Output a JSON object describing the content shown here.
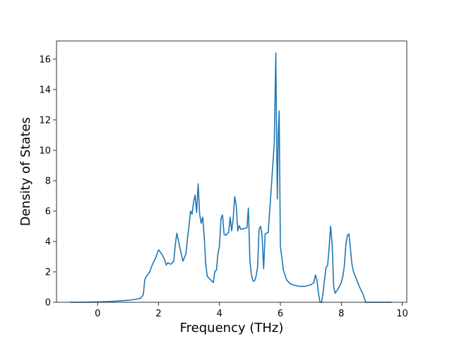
{
  "chart_data": {
    "type": "line",
    "title": "",
    "xlabel": "Frequency (THz)",
    "ylabel": "Density of States",
    "xlim": [
      -1.35,
      10.15
    ],
    "ylim": [
      0,
      17.2
    ],
    "xticks": [
      0,
      2,
      4,
      6,
      8,
      10
    ],
    "yticks": [
      0,
      2,
      4,
      6,
      8,
      10,
      12,
      14,
      16
    ],
    "grid": false,
    "legend": "none",
    "line_color": "#1f77b4",
    "series": [
      {
        "x": [
          -0.9,
          -0.4,
          0.0,
          0.4,
          0.8,
          1.0,
          1.2,
          1.4,
          1.5,
          1.55,
          1.6,
          1.7,
          1.8,
          1.9,
          2.0,
          2.1,
          2.2,
          2.25,
          2.3,
          2.4,
          2.5,
          2.55,
          2.6,
          2.7,
          2.8,
          2.9,
          2.95,
          3.0,
          3.05,
          3.1,
          3.15,
          3.2,
          3.25,
          3.3,
          3.35,
          3.4,
          3.45,
          3.5,
          3.55,
          3.6,
          3.7,
          3.8,
          3.85,
          3.9,
          3.95,
          4.0,
          4.05,
          4.1,
          4.15,
          4.2,
          4.3,
          4.35,
          4.4,
          4.45,
          4.5,
          4.55,
          4.6,
          4.65,
          4.7,
          4.8,
          4.9,
          4.95,
          5.0,
          5.05,
          5.1,
          5.15,
          5.2,
          5.25,
          5.3,
          5.35,
          5.4,
          5.45,
          5.5,
          5.55,
          5.6,
          5.7,
          5.75,
          5.8,
          5.85,
          5.88,
          5.9,
          5.93,
          5.96,
          6.0,
          6.05,
          6.1,
          6.2,
          6.3,
          6.4,
          6.5,
          6.6,
          6.8,
          7.0,
          7.1,
          7.15,
          7.2,
          7.25,
          7.3,
          7.35,
          7.4,
          7.45,
          7.5,
          7.55,
          7.6,
          7.65,
          7.7,
          7.75,
          7.8,
          7.9,
          8.0,
          8.05,
          8.1,
          8.15,
          8.2,
          8.25,
          8.3,
          8.35,
          8.4,
          8.5,
          8.6,
          8.7,
          8.75,
          8.8,
          8.9,
          9.0,
          9.5,
          9.65
        ],
        "y": [
          0,
          0,
          0.02,
          0.05,
          0.1,
          0.13,
          0.18,
          0.25,
          0.5,
          1.5,
          1.7,
          1.95,
          2.5,
          2.9,
          3.45,
          3.2,
          2.8,
          2.45,
          2.6,
          2.5,
          2.7,
          3.8,
          4.55,
          3.6,
          2.7,
          3.2,
          4.2,
          5.0,
          6.0,
          5.8,
          6.6,
          7.05,
          5.9,
          7.8,
          5.8,
          5.2,
          5.6,
          4.3,
          2.5,
          1.7,
          1.5,
          1.3,
          2.05,
          2.1,
          3.2,
          3.7,
          5.5,
          5.75,
          4.5,
          4.4,
          4.6,
          5.6,
          4.7,
          5.5,
          6.95,
          6.4,
          4.7,
          5.05,
          4.8,
          4.85,
          4.9,
          6.2,
          2.7,
          1.8,
          1.4,
          1.4,
          1.7,
          2.3,
          4.8,
          5.0,
          4.4,
          2.2,
          4.5,
          4.55,
          4.6,
          7.5,
          9.0,
          10.5,
          16.4,
          10.0,
          6.8,
          11.0,
          12.6,
          3.7,
          2.9,
          2.1,
          1.5,
          1.25,
          1.15,
          1.1,
          1.05,
          1.05,
          1.15,
          1.3,
          1.8,
          1.45,
          0.6,
          0,
          0,
          0.6,
          1.5,
          2.3,
          2.4,
          3.6,
          5.0,
          3.8,
          1.0,
          0.6,
          0.9,
          1.3,
          1.7,
          2.4,
          3.8,
          4.4,
          4.5,
          3.5,
          2.5,
          2.0,
          1.5,
          1.0,
          0.6,
          0.3,
          0,
          0,
          0,
          0,
          0
        ]
      }
    ]
  }
}
